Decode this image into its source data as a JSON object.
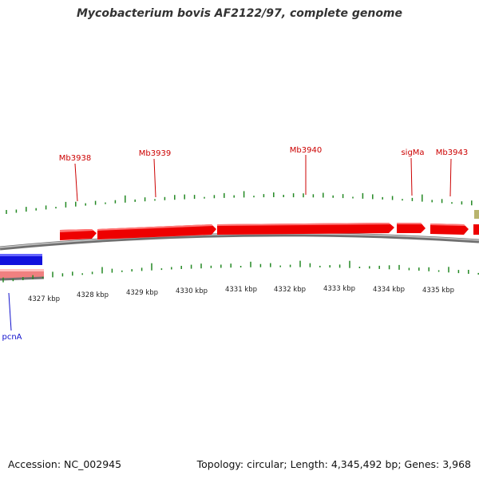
{
  "title": "Mycobacterium bovis AF2122/97, complete genome",
  "footer": {
    "accession": "Accession: NC_002945",
    "summary": "Topology: circular; Length: 4,345,492 bp; Genes: 3,968"
  },
  "colors": {
    "forward_gene": "#ee0000",
    "reverse_gene": "#1111dd",
    "label_forward": "#cc0000",
    "label_reverse": "#1111cc",
    "gc_tick": "#228822",
    "backbone": "#888888",
    "olive_feature": "#b8b46e"
  },
  "scale_labels": [
    "4327 kbp",
    "4328 kbp",
    "4329 kbp",
    "4330 kbp",
    "4331 kbp",
    "4332 kbp",
    "4333 kbp",
    "4334 kbp",
    "4335 kbp"
  ],
  "gene_labels_forward": [
    "Mb3938",
    "Mb3939",
    "Mb3940",
    "sigMa",
    "Mb3943"
  ],
  "gene_labels_reverse": [
    "pcnA"
  ]
}
